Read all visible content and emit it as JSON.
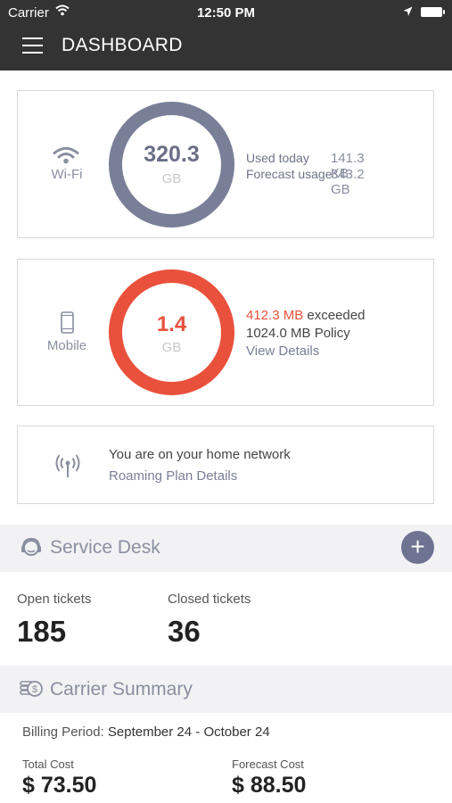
{
  "status_bar": {
    "carrier": "Carrier",
    "time": "12:50 PM"
  },
  "navbar": {
    "title": "DASHBOARD"
  },
  "wifi_card": {
    "label": "Wi-Fi",
    "value": "320.3",
    "unit": "GB",
    "used_today_label": "Used today",
    "used_today_value": "141.3 KB",
    "forecast_label": "Forecast usage",
    "forecast_value": "343.2 GB"
  },
  "mobile_card": {
    "label": "Mobile",
    "value": "1.4",
    "unit": "GB",
    "exceeded_amount": "412.3 MB",
    "exceeded_text": "exceeded",
    "policy": "1024.0 MB Policy",
    "details_link": "View Details"
  },
  "roaming_card": {
    "message": "You are on your home network",
    "link": "Roaming Plan Details"
  },
  "service_desk": {
    "title": "Service Desk",
    "add_symbol": "+",
    "open_label": "Open tickets",
    "open_count": "185",
    "closed_label": "Closed tickets",
    "closed_count": "36"
  },
  "carrier_summary": {
    "title": "Carrier Summary",
    "billing_label": "Billing Period:",
    "billing_period": "September 24 - October 24",
    "total_label": "Total Cost",
    "total_value": "$ 73.50",
    "forecast_label": "Forecast Cost",
    "forecast_value": "$ 88.50"
  },
  "colors": {
    "wifi_ring": "#7a7f98",
    "mobile_ring": "#e9513c",
    "header_bg": "#333333",
    "accent": "#6e7391"
  }
}
